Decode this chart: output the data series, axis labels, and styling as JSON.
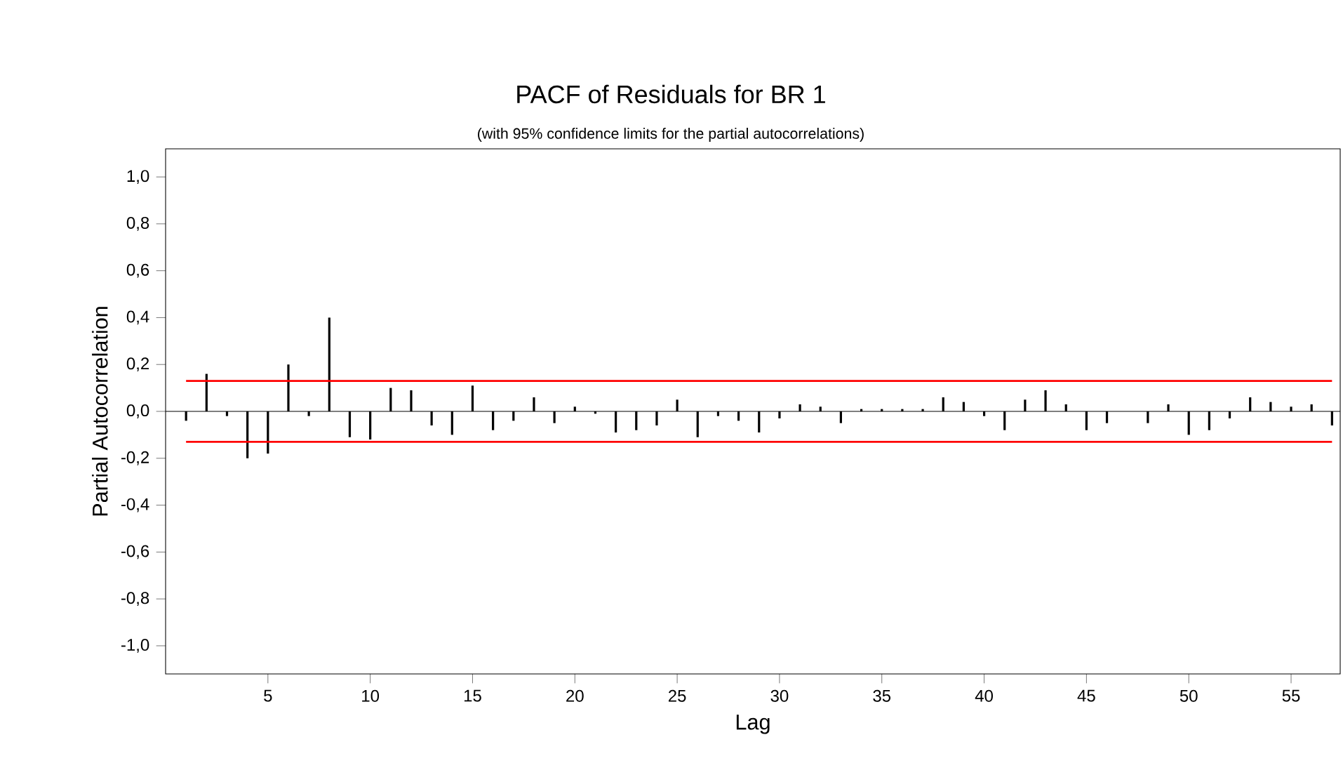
{
  "chart_data": {
    "type": "bar",
    "title": "PACF of Residuals for BR 1",
    "subtitle": "(with 95% confidence limits for the partial autocorrelations)",
    "xlabel": "Lag",
    "ylabel": "Partial Autocorrelation",
    "x": [
      1,
      2,
      3,
      4,
      5,
      6,
      7,
      8,
      9,
      10,
      11,
      12,
      13,
      14,
      15,
      16,
      17,
      18,
      19,
      20,
      21,
      22,
      23,
      24,
      25,
      26,
      27,
      28,
      29,
      30,
      31,
      32,
      33,
      34,
      35,
      36,
      37,
      38,
      39,
      40,
      41,
      42,
      43,
      44,
      45,
      46,
      47,
      48,
      49,
      50,
      51,
      52,
      53,
      54,
      55,
      56,
      57
    ],
    "values": [
      -0.04,
      0.16,
      -0.02,
      -0.2,
      -0.18,
      0.2,
      -0.02,
      0.4,
      -0.11,
      -0.12,
      0.1,
      0.09,
      -0.06,
      -0.1,
      0.11,
      -0.08,
      -0.04,
      0.06,
      -0.05,
      0.02,
      -0.01,
      -0.09,
      -0.08,
      -0.06,
      0.05,
      -0.11,
      -0.02,
      -0.04,
      -0.09,
      -0.03,
      0.03,
      0.02,
      -0.05,
      0.01,
      0.01,
      0.01,
      0.01,
      0.06,
      0.04,
      -0.02,
      -0.08,
      0.05,
      0.09,
      0.03,
      -0.08,
      -0.05,
      0.0,
      -0.05,
      0.03,
      -0.1,
      -0.08,
      -0.03,
      0.06,
      0.04,
      0.02,
      0.03,
      -0.06
    ],
    "color": "#000000",
    "xlim": [
      0,
      57.4
    ],
    "xticks": [
      5,
      10,
      15,
      20,
      25,
      30,
      35,
      40,
      45,
      50,
      55
    ],
    "ylim": [
      -1.12,
      1.12
    ],
    "yticks": [
      {
        "value": -1.0,
        "label": "-1,0"
      },
      {
        "value": -0.8,
        "label": "-0,8"
      },
      {
        "value": -0.6,
        "label": "-0,6"
      },
      {
        "value": -0.4,
        "label": "-0,4"
      },
      {
        "value": -0.2,
        "label": "-0,2"
      },
      {
        "value": 0.0,
        "label": "0,0"
      },
      {
        "value": 0.2,
        "label": "0,2"
      },
      {
        "value": 0.4,
        "label": "0,4"
      },
      {
        "value": 0.6,
        "label": "0,6"
      },
      {
        "value": 0.8,
        "label": "0,8"
      },
      {
        "value": 1.0,
        "label": "1,0"
      }
    ],
    "ref_lines": [
      {
        "axis": "y",
        "value": 0.13,
        "color": "#ff0000"
      },
      {
        "axis": "y",
        "value": -0.13,
        "color": "#ff0000"
      }
    ]
  }
}
